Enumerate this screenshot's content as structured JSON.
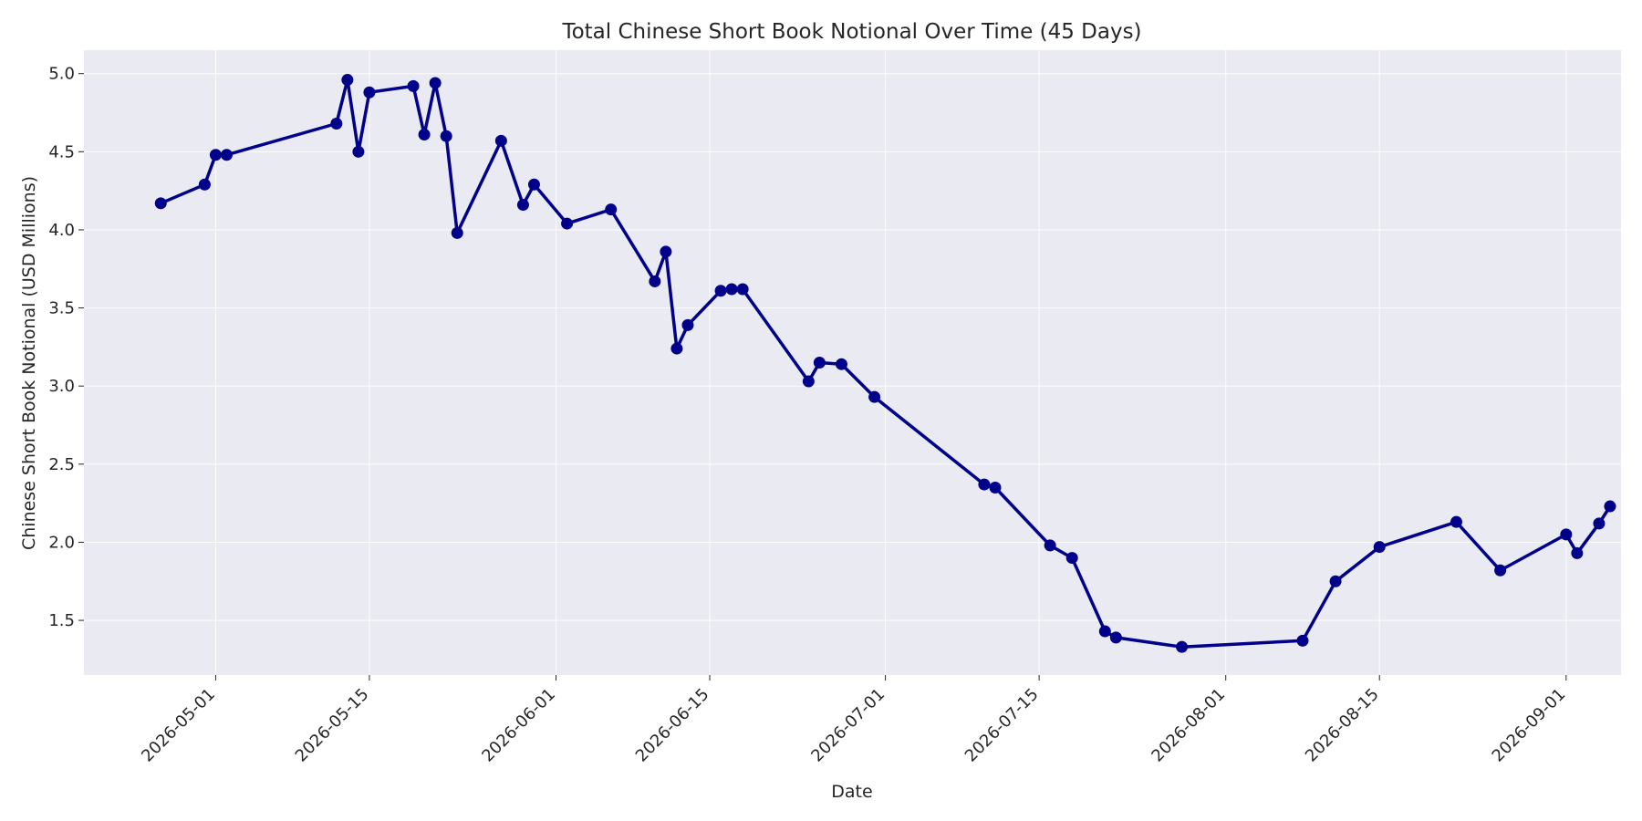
{
  "chart_data": {
    "type": "line",
    "title": "Total Chinese Short Book Notional Over Time (45 Days)",
    "xlabel": "Date",
    "ylabel": "Chinese Short Book Notional (USD Millions)",
    "xlim": [
      "2026-04-19",
      "2026-09-06"
    ],
    "ylim": [
      1.15,
      5.15
    ],
    "x_ticks": [
      "2026-05-01",
      "2026-05-15",
      "2026-06-01",
      "2026-06-15",
      "2026-07-01",
      "2026-07-15",
      "2026-08-01",
      "2026-08-15",
      "2026-09-01"
    ],
    "y_ticks": [
      "1.5",
      "2.0",
      "2.5",
      "3.0",
      "3.5",
      "4.0",
      "4.5",
      "5.0"
    ],
    "grid": true,
    "colors": {
      "line": "#00008b",
      "background": "#eaeaf2",
      "grid": "#ffffff"
    },
    "series": [
      {
        "x": [
          "2026-04-26",
          "2026-04-30",
          "2026-05-01",
          "2026-05-02",
          "2026-05-12",
          "2026-05-13",
          "2026-05-14",
          "2026-05-15",
          "2026-05-19",
          "2026-05-20",
          "2026-05-21",
          "2026-05-22",
          "2026-05-23",
          "2026-05-27",
          "2026-05-29",
          "2026-05-30",
          "2026-06-02",
          "2026-06-06",
          "2026-06-10",
          "2026-06-11",
          "2026-06-12",
          "2026-06-13",
          "2026-06-16",
          "2026-06-17",
          "2026-06-18",
          "2026-06-24",
          "2026-06-25",
          "2026-06-27",
          "2026-06-30",
          "2026-07-10",
          "2026-07-11",
          "2026-07-16",
          "2026-07-18",
          "2026-07-21",
          "2026-07-22",
          "2026-07-28",
          "2026-08-08",
          "2026-08-11",
          "2026-08-15",
          "2026-08-22",
          "2026-08-26",
          "2026-09-01",
          "2026-09-02",
          "2026-09-04",
          "2026-09-05"
        ],
        "y": [
          4.17,
          4.29,
          4.48,
          4.48,
          4.68,
          4.96,
          4.5,
          4.88,
          4.92,
          4.61,
          4.94,
          4.6,
          3.98,
          4.57,
          4.16,
          4.29,
          4.04,
          4.13,
          3.67,
          3.86,
          3.24,
          3.39,
          3.61,
          3.62,
          3.62,
          3.03,
          3.15,
          3.14,
          2.93,
          2.37,
          2.35,
          1.98,
          1.9,
          1.43,
          1.39,
          1.33,
          1.37,
          1.75,
          1.97,
          2.13,
          1.82,
          2.05,
          1.93,
          2.12,
          2.23
        ]
      }
    ]
  }
}
